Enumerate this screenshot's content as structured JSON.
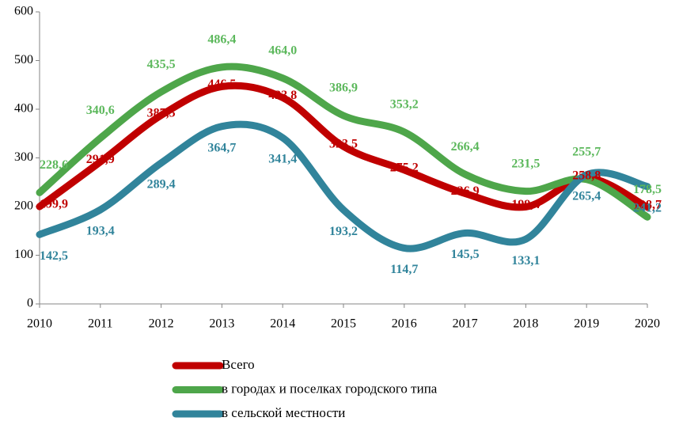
{
  "chart_data": {
    "type": "line",
    "categories": [
      "2010",
      "2011",
      "2012",
      "2013",
      "2014",
      "2015",
      "2016",
      "2017",
      "2018",
      "2019",
      "2020"
    ],
    "series": [
      {
        "name": "Всего",
        "color": "#c00000",
        "values": [
          199.9,
          291.9,
          387.5,
          446.5,
          423.8,
          323.5,
          275.2,
          226.9,
          199.4,
          258.8,
          198.7
        ],
        "value_labels": [
          "199,9",
          "291,9",
          "387,5",
          "446,5",
          "423,8",
          "323,5",
          "275,2",
          "226,9",
          "199,4",
          "258,8",
          "198,7"
        ]
      },
      {
        "name": "в городах и поселках городского типа",
        "color": "#4ea64a",
        "values": [
          228.6,
          340.6,
          435.5,
          486.4,
          464,
          386.9,
          353.2,
          266.4,
          231.5,
          255.7,
          178.5
        ],
        "value_labels": [
          "228,6",
          "340,6",
          "435,5",
          "486,4",
          "464,0",
          "386,9",
          "353,2",
          "266,4",
          "231,5",
          "255,7",
          "178,5"
        ]
      },
      {
        "name": "в сельской местности",
        "color": "#31849b",
        "values": [
          142.5,
          193.4,
          289.4,
          364.7,
          341.4,
          193.2,
          114.7,
          145.5,
          133.1,
          265.4,
          241.2
        ],
        "value_labels": [
          "142,5",
          "193,4",
          "289,4",
          "364,7",
          "341,4",
          "193,2",
          "114,7",
          "145,5",
          "133,1",
          "265,4",
          "241,2"
        ]
      }
    ],
    "ylim": [
      0,
      600
    ],
    "yticks": [
      0,
      100,
      200,
      300,
      400,
      500,
      600
    ],
    "grid": false,
    "legend": "bottom"
  }
}
